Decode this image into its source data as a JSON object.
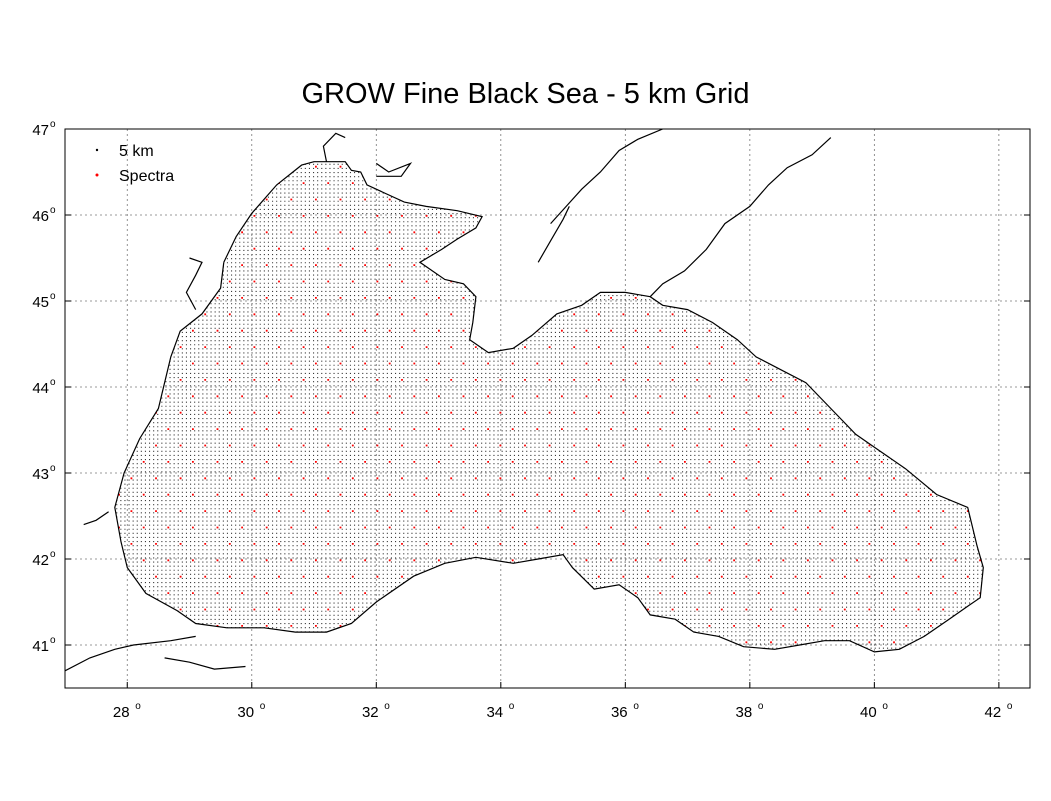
{
  "title": "GROW Fine Black Sea - 5 km Grid",
  "legend": [
    {
      "label": "5 km",
      "color": "#000000"
    },
    {
      "label": "Spectra",
      "color": "#ff0000"
    }
  ],
  "axes": {
    "x_ticks": [
      {
        "value": 28,
        "label": "28",
        "sup": "o"
      },
      {
        "value": 30,
        "label": "30",
        "sup": "o"
      },
      {
        "value": 32,
        "label": "32",
        "sup": "o"
      },
      {
        "value": 34,
        "label": "34",
        "sup": "o"
      },
      {
        "value": 36,
        "label": "36",
        "sup": "o"
      },
      {
        "value": 38,
        "label": "38",
        "sup": "o"
      },
      {
        "value": 40,
        "label": "40",
        "sup": "o"
      },
      {
        "value": 42,
        "label": "42",
        "sup": "o"
      }
    ],
    "y_ticks": [
      {
        "value": 41,
        "label": "41",
        "sup": "o"
      },
      {
        "value": 42,
        "label": "42",
        "sup": "o"
      },
      {
        "value": 43,
        "label": "43",
        "sup": "o"
      },
      {
        "value": 44,
        "label": "44",
        "sup": "o"
      },
      {
        "value": 45,
        "label": "45",
        "sup": "o"
      },
      {
        "value": 46,
        "label": "46",
        "sup": "o"
      },
      {
        "value": 47,
        "label": "47",
        "sup": "o"
      }
    ],
    "xlim": [
      27,
      42.5
    ],
    "ylim": [
      40.5,
      47
    ],
    "grid": true
  },
  "colors": {
    "grid_point": "#3a3a3a",
    "spectra_point": "#ff0000",
    "coastline": "#000000",
    "gridline": "#777777"
  },
  "sea_outline_lonlat": [
    [
      29.55,
      45.45
    ],
    [
      29.75,
      45.75
    ],
    [
      30.0,
      46.02
    ],
    [
      30.4,
      46.35
    ],
    [
      30.8,
      46.58
    ],
    [
      31.0,
      46.62
    ],
    [
      31.5,
      46.62
    ],
    [
      31.6,
      46.52
    ],
    [
      31.75,
      46.5
    ],
    [
      31.85,
      46.35
    ],
    [
      32.15,
      46.25
    ],
    [
      32.45,
      46.15
    ],
    [
      32.8,
      46.1
    ],
    [
      33.3,
      46.05
    ],
    [
      33.7,
      45.98
    ],
    [
      33.6,
      45.85
    ],
    [
      33.3,
      45.72
    ],
    [
      33.05,
      45.6
    ],
    [
      32.7,
      45.45
    ],
    [
      33.1,
      45.25
    ],
    [
      33.4,
      45.2
    ],
    [
      33.6,
      45.05
    ],
    [
      33.55,
      44.75
    ],
    [
      33.5,
      44.55
    ],
    [
      33.8,
      44.4
    ],
    [
      34.2,
      44.45
    ],
    [
      34.5,
      44.6
    ],
    [
      34.9,
      44.85
    ],
    [
      35.3,
      44.95
    ],
    [
      35.6,
      45.1
    ],
    [
      36.0,
      45.1
    ],
    [
      36.4,
      45.05
    ],
    [
      36.6,
      44.95
    ],
    [
      37.0,
      44.9
    ],
    [
      37.4,
      44.75
    ],
    [
      37.8,
      44.55
    ],
    [
      38.1,
      44.35
    ],
    [
      38.5,
      44.2
    ],
    [
      38.9,
      44.05
    ],
    [
      39.3,
      43.75
    ],
    [
      39.7,
      43.45
    ],
    [
      40.0,
      43.3
    ],
    [
      40.5,
      43.05
    ],
    [
      41.0,
      42.75
    ],
    [
      41.5,
      42.6
    ],
    [
      41.65,
      42.15
    ],
    [
      41.75,
      41.9
    ],
    [
      41.7,
      41.55
    ],
    [
      41.5,
      41.45
    ],
    [
      41.2,
      41.3
    ],
    [
      40.8,
      41.1
    ],
    [
      40.4,
      40.95
    ],
    [
      40.0,
      40.92
    ],
    [
      39.6,
      41.05
    ],
    [
      39.2,
      41.05
    ],
    [
      38.8,
      41.0
    ],
    [
      38.4,
      40.95
    ],
    [
      37.9,
      40.98
    ],
    [
      37.5,
      41.1
    ],
    [
      37.1,
      41.15
    ],
    [
      36.8,
      41.3
    ],
    [
      36.4,
      41.35
    ],
    [
      36.2,
      41.55
    ],
    [
      35.9,
      41.7
    ],
    [
      35.5,
      41.65
    ],
    [
      35.15,
      41.9
    ],
    [
      35.0,
      42.05
    ],
    [
      34.6,
      42.0
    ],
    [
      34.2,
      41.95
    ],
    [
      33.6,
      42.02
    ],
    [
      33.1,
      41.95
    ],
    [
      32.6,
      41.8
    ],
    [
      32.0,
      41.5
    ],
    [
      31.6,
      41.25
    ],
    [
      31.2,
      41.15
    ],
    [
      30.7,
      41.15
    ],
    [
      30.2,
      41.2
    ],
    [
      29.6,
      41.2
    ],
    [
      29.1,
      41.25
    ],
    [
      28.8,
      41.4
    ],
    [
      28.3,
      41.6
    ],
    [
      28.0,
      41.9
    ],
    [
      27.9,
      42.2
    ],
    [
      27.8,
      42.6
    ],
    [
      27.95,
      43.0
    ],
    [
      28.2,
      43.4
    ],
    [
      28.5,
      43.75
    ],
    [
      28.6,
      44.05
    ],
    [
      28.7,
      44.35
    ],
    [
      28.85,
      44.65
    ],
    [
      29.2,
      44.85
    ],
    [
      29.5,
      45.15
    ]
  ],
  "land_lines_lonlat": [
    [
      [
        29.55,
        45.45
      ],
      [
        29.75,
        45.75
      ],
      [
        30.0,
        46.02
      ],
      [
        30.4,
        46.35
      ],
      [
        30.8,
        46.58
      ],
      [
        31.0,
        46.62
      ],
      [
        31.5,
        46.62
      ],
      [
        31.6,
        46.52
      ],
      [
        31.75,
        46.5
      ],
      [
        31.85,
        46.35
      ],
      [
        32.15,
        46.25
      ],
      [
        32.45,
        46.15
      ],
      [
        32.8,
        46.1
      ],
      [
        33.3,
        46.05
      ],
      [
        33.7,
        45.98
      ],
      [
        33.6,
        45.85
      ],
      [
        33.3,
        45.72
      ],
      [
        33.05,
        45.6
      ],
      [
        32.7,
        45.45
      ],
      [
        33.1,
        45.25
      ],
      [
        33.4,
        45.2
      ],
      [
        33.6,
        45.05
      ],
      [
        33.55,
        44.75
      ],
      [
        33.5,
        44.55
      ],
      [
        33.8,
        44.4
      ],
      [
        34.2,
        44.45
      ],
      [
        34.5,
        44.6
      ],
      [
        34.9,
        44.85
      ],
      [
        35.3,
        44.95
      ],
      [
        35.6,
        45.1
      ],
      [
        36.0,
        45.1
      ],
      [
        36.4,
        45.05
      ],
      [
        36.6,
        44.95
      ],
      [
        37.0,
        44.9
      ],
      [
        37.4,
        44.75
      ],
      [
        37.8,
        44.55
      ],
      [
        38.1,
        44.35
      ],
      [
        38.5,
        44.2
      ],
      [
        38.9,
        44.05
      ],
      [
        39.3,
        43.75
      ],
      [
        39.7,
        43.45
      ],
      [
        40.0,
        43.3
      ],
      [
        40.5,
        43.05
      ],
      [
        41.0,
        42.75
      ],
      [
        41.5,
        42.6
      ],
      [
        41.65,
        42.15
      ],
      [
        41.75,
        41.9
      ],
      [
        41.7,
        41.55
      ],
      [
        41.5,
        41.45
      ],
      [
        41.2,
        41.3
      ],
      [
        40.8,
        41.1
      ],
      [
        40.4,
        40.95
      ],
      [
        40.0,
        40.92
      ],
      [
        39.6,
        41.05
      ],
      [
        39.2,
        41.05
      ],
      [
        38.8,
        41.0
      ],
      [
        38.4,
        40.95
      ],
      [
        37.9,
        40.98
      ],
      [
        37.5,
        41.1
      ],
      [
        37.1,
        41.15
      ],
      [
        36.8,
        41.3
      ],
      [
        36.4,
        41.35
      ],
      [
        36.2,
        41.55
      ],
      [
        35.9,
        41.7
      ],
      [
        35.5,
        41.65
      ],
      [
        35.15,
        41.9
      ],
      [
        35.0,
        42.05
      ],
      [
        34.6,
        42.0
      ],
      [
        34.2,
        41.95
      ],
      [
        33.6,
        42.02
      ],
      [
        33.1,
        41.95
      ],
      [
        32.6,
        41.8
      ],
      [
        32.0,
        41.5
      ],
      [
        31.6,
        41.25
      ],
      [
        31.2,
        41.15
      ],
      [
        30.7,
        41.15
      ],
      [
        30.2,
        41.2
      ],
      [
        29.6,
        41.2
      ],
      [
        29.1,
        41.25
      ],
      [
        28.8,
        41.4
      ],
      [
        28.3,
        41.6
      ],
      [
        28.0,
        41.9
      ],
      [
        27.9,
        42.2
      ],
      [
        27.8,
        42.6
      ],
      [
        27.95,
        43.0
      ],
      [
        28.2,
        43.4
      ],
      [
        28.5,
        43.75
      ],
      [
        28.6,
        44.05
      ],
      [
        28.7,
        44.35
      ],
      [
        28.85,
        44.65
      ],
      [
        29.2,
        44.85
      ],
      [
        29.5,
        45.15
      ],
      [
        29.55,
        45.45
      ]
    ],
    [
      [
        36.4,
        45.05
      ],
      [
        36.6,
        45.2
      ],
      [
        36.95,
        45.35
      ],
      [
        37.3,
        45.6
      ],
      [
        37.6,
        45.9
      ],
      [
        38.0,
        46.1
      ],
      [
        38.3,
        46.35
      ],
      [
        38.6,
        46.55
      ],
      [
        39.0,
        46.7
      ],
      [
        39.3,
        46.9
      ]
    ],
    [
      [
        34.8,
        45.9
      ],
      [
        35.05,
        46.1
      ],
      [
        35.3,
        46.3
      ],
      [
        35.6,
        46.5
      ],
      [
        35.9,
        46.75
      ],
      [
        36.2,
        46.88
      ],
      [
        36.6,
        47.0
      ]
    ],
    [
      [
        34.6,
        45.45
      ],
      [
        34.8,
        45.7
      ],
      [
        35.0,
        45.95
      ],
      [
        35.1,
        46.1
      ]
    ],
    [
      [
        27.0,
        40.7
      ],
      [
        27.4,
        40.85
      ],
      [
        27.8,
        40.95
      ],
      [
        28.1,
        41.0
      ],
      [
        28.7,
        41.05
      ],
      [
        29.1,
        41.1
      ]
    ],
    [
      [
        28.6,
        40.85
      ],
      [
        29.0,
        40.8
      ],
      [
        29.4,
        40.72
      ],
      [
        29.9,
        40.75
      ]
    ],
    [
      [
        27.3,
        42.4
      ],
      [
        27.5,
        42.45
      ],
      [
        27.7,
        42.55
      ]
    ],
    [
      [
        29.1,
        44.9
      ],
      [
        28.95,
        45.1
      ],
      [
        29.1,
        45.3
      ],
      [
        29.2,
        45.45
      ],
      [
        29.0,
        45.5
      ]
    ],
    [
      [
        31.2,
        46.62
      ],
      [
        31.15,
        46.8
      ],
      [
        31.35,
        46.95
      ],
      [
        31.5,
        46.9
      ]
    ],
    [
      [
        32.0,
        46.6
      ],
      [
        32.2,
        46.5
      ],
      [
        32.55,
        46.6
      ],
      [
        32.4,
        46.45
      ],
      [
        32.0,
        46.45
      ]
    ]
  ]
}
